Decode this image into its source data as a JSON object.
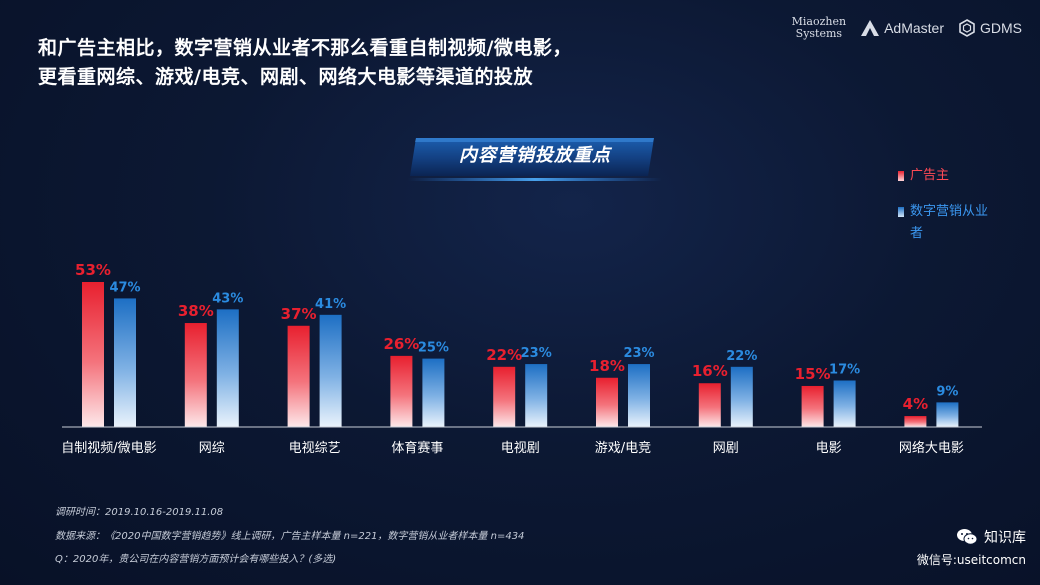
{
  "header": {
    "title_line1": "和广告主相比，数字营销从业者不那么看重自制视频/微电影，",
    "title_line2": "更看重网综、游戏/电竞、网剧、网络大电影等渠道的投放"
  },
  "logos": {
    "miaozhen_line1": "Miaozhen",
    "miaozhen_line2": "Systems",
    "admaster": "AdMaster",
    "gdms": "GDMS"
  },
  "chart_data": {
    "type": "bar",
    "title": "内容营销投放重点",
    "categories": [
      "自制视频/微电影",
      "网综",
      "电视综艺",
      "体育赛事",
      "电视剧",
      "游戏/电竞",
      "网剧",
      "电影",
      "网络大电影"
    ],
    "series": [
      {
        "name": "广告主",
        "values": [
          53,
          38,
          37,
          26,
          22,
          18,
          16,
          15,
          4
        ],
        "labels": [
          "53%",
          "38%",
          "37%",
          "26%",
          "22%",
          "18%",
          "16%",
          "15%",
          "4%"
        ],
        "color": "#e8202f"
      },
      {
        "name": "数字营销从业者",
        "values": [
          47,
          43,
          41,
          25,
          23,
          23,
          22,
          17,
          9
        ],
        "labels": [
          "47%",
          "43%",
          "41%",
          "25%",
          "23%",
          "23%",
          "22%",
          "17%",
          "9%"
        ],
        "color": "#1d6fc4"
      }
    ],
    "ylim": [
      0,
      55
    ],
    "legend_position": "right"
  },
  "footnotes": {
    "line1": "调研时间：2019.10.16-2019.11.08",
    "line2": "数据来源：《2020中国数字营销趋势》线上调研，广告主样本量 n=221，数字营销从业者样本量 n=434",
    "line3": "Q：2020年，贵公司在内容营销方面预计会有哪些投入？(多选)"
  },
  "watermark": {
    "name": "知识库",
    "id": "微信号:useitcomcn"
  }
}
